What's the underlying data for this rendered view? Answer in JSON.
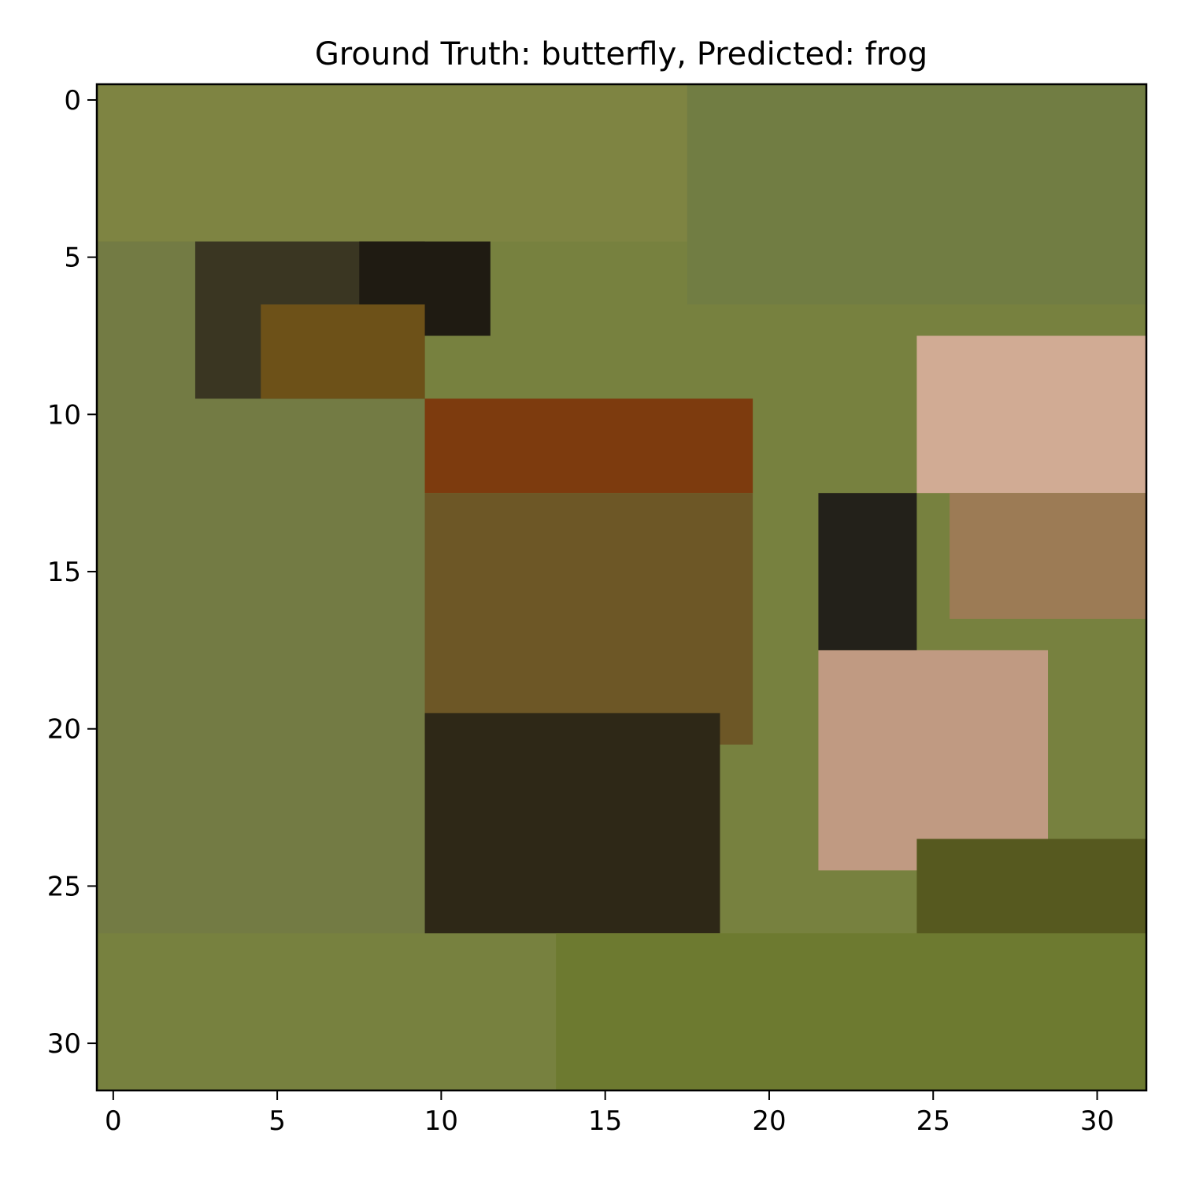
{
  "chart_data": {
    "type": "heatmap",
    "title": "Ground Truth: butterfly, Predicted: frog",
    "xlabel": "",
    "ylabel": "",
    "image_size": [
      32,
      32
    ],
    "xlim": [
      -0.5,
      31.5
    ],
    "ylim": [
      31.5,
      -0.5
    ],
    "x_ticks": [
      0,
      5,
      10,
      15,
      20,
      25,
      30
    ],
    "y_ticks": [
      0,
      5,
      10,
      15,
      20,
      25,
      30
    ],
    "grid": false,
    "background_color": "#77813f",
    "regions": [
      {
        "name": "upper-left-olive",
        "rows": [
          0,
          4
        ],
        "cols": [
          0,
          31
        ],
        "color": "#7e8442"
      },
      {
        "name": "olive-background-right",
        "rows": [
          0,
          6
        ],
        "cols": [
          18,
          31
        ],
        "color": "#717d43"
      },
      {
        "name": "left-background",
        "rows": [
          5,
          26
        ],
        "cols": [
          0,
          9
        ],
        "color": "#737b44"
      },
      {
        "name": "wing-dark-edge",
        "rows": [
          5,
          9
        ],
        "cols": [
          3,
          9
        ],
        "color": "#3a3622"
      },
      {
        "name": "wing-dark-center",
        "rows": [
          5,
          7
        ],
        "cols": [
          8,
          11
        ],
        "color": "#1f1b12"
      },
      {
        "name": "wing-orange-spots",
        "rows": [
          7,
          9
        ],
        "cols": [
          5,
          9
        ],
        "color": "#6d5118"
      },
      {
        "name": "wing-orange-band",
        "rows": [
          10,
          12
        ],
        "cols": [
          10,
          19
        ],
        "color": "#7d3b0e"
      },
      {
        "name": "wing-brown-middle",
        "rows": [
          13,
          20
        ],
        "cols": [
          10,
          19
        ],
        "color": "#6d5726"
      },
      {
        "name": "wing-dark-lower",
        "rows": [
          20,
          26
        ],
        "cols": [
          10,
          18
        ],
        "color": "#2e2817"
      },
      {
        "name": "flower-pink-upper",
        "rows": [
          8,
          12
        ],
        "cols": [
          25,
          31
        ],
        "color": "#d1ab94"
      },
      {
        "name": "flower-brown",
        "rows": [
          13,
          16
        ],
        "cols": [
          26,
          31
        ],
        "color": "#9c7b55"
      },
      {
        "name": "flower-pink-lower",
        "rows": [
          18,
          24
        ],
        "cols": [
          22,
          28
        ],
        "color": "#c09a82"
      },
      {
        "name": "stem-dark",
        "rows": [
          13,
          17
        ],
        "cols": [
          22,
          24
        ],
        "color": "#23211a"
      },
      {
        "name": "foliage-green",
        "rows": [
          24,
          31
        ],
        "cols": [
          25,
          31
        ],
        "color": "#56591f"
      },
      {
        "name": "bright-green",
        "rows": [
          27,
          31
        ],
        "cols": [
          14,
          31
        ],
        "color": "#6d7a30"
      }
    ]
  }
}
